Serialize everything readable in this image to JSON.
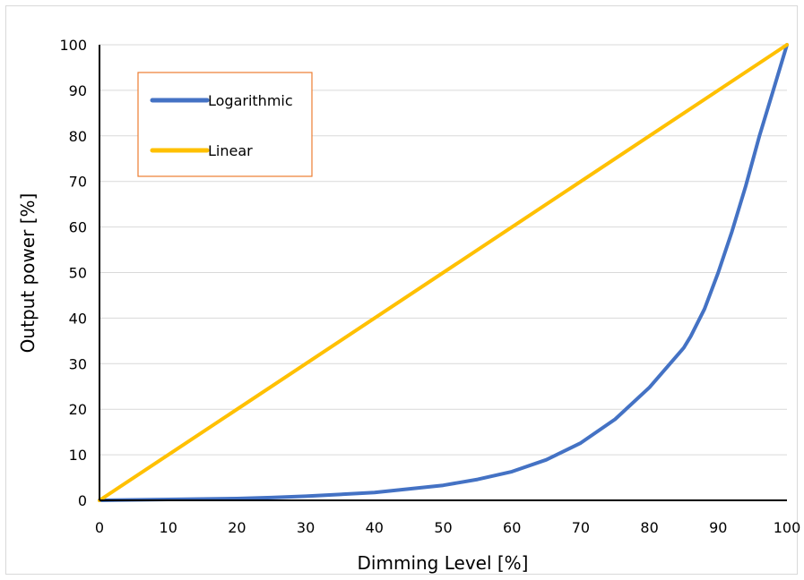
{
  "chart_data": {
    "type": "line",
    "title": "",
    "xlabel": "Dimming Level [%]",
    "ylabel": "Output power [%]",
    "xlim": [
      0,
      100
    ],
    "ylim": [
      0,
      100
    ],
    "xticks": [
      0,
      10,
      20,
      30,
      40,
      50,
      60,
      70,
      80,
      90,
      100
    ],
    "yticks": [
      0,
      10,
      20,
      30,
      40,
      50,
      60,
      70,
      80,
      90,
      100
    ],
    "grid": "horizontal",
    "legend_position": "top-left",
    "series": [
      {
        "name": "Logarithmic",
        "color": "#4472c4",
        "x": [
          0,
          10,
          20,
          25,
          30,
          40,
          50,
          55,
          60,
          65,
          70,
          75,
          80,
          85,
          86,
          88,
          90,
          92,
          94,
          96,
          98,
          100
        ],
        "y": [
          0,
          0.2,
          0.4,
          0.6,
          0.9,
          1.7,
          3.3,
          4.6,
          6.3,
          8.9,
          12.6,
          17.8,
          24.8,
          33.5,
          36.0,
          42.0,
          50.0,
          59.0,
          69.0,
          80.0,
          90.0,
          100.0
        ]
      },
      {
        "name": "Linear",
        "color": "#ffc000",
        "x": [
          0,
          25,
          85,
          100
        ],
        "y": [
          0,
          25,
          85,
          100
        ]
      }
    ]
  }
}
